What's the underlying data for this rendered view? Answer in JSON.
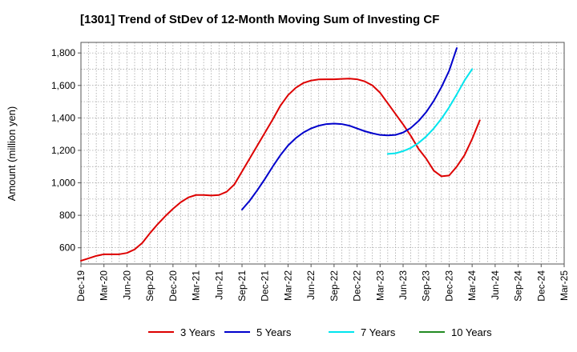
{
  "chart_data": {
    "type": "line",
    "title": "[1301]  Trend of StDev of 12-Month Moving Sum of Investing CF",
    "xlabel": "",
    "ylabel": "Amount (million yen)",
    "x_tick_labels": [
      "Dec-19",
      "Mar-20",
      "Jun-20",
      "Sep-20",
      "Dec-20",
      "Mar-21",
      "Jun-21",
      "Sep-21",
      "Dec-21",
      "Mar-22",
      "Jun-22",
      "Sep-22",
      "Dec-22",
      "Mar-23",
      "Jun-23",
      "Sep-23",
      "Dec-23",
      "Mar-24",
      "Jun-24",
      "Sep-24",
      "Dec-24",
      "Mar-25"
    ],
    "y_ticks": [
      600,
      800,
      1000,
      1200,
      1400,
      1600,
      1800
    ],
    "y_tick_labels": [
      "600",
      "800",
      "1,000",
      "1,200",
      "1,400",
      "1,600",
      "1,800"
    ],
    "ylim": [
      500,
      1865
    ],
    "grid": true,
    "legend_position": "bottom",
    "series": [
      {
        "name": "3 Years",
        "color": "#dd0000",
        "start_index": 0,
        "values": [
          520,
          535,
          550,
          560,
          560,
          560,
          568,
          590,
          630,
          690,
          745,
          795,
          840,
          880,
          910,
          925,
          925,
          922,
          925,
          945,
          990,
          1070,
          1150,
          1230,
          1310,
          1390,
          1475,
          1540,
          1585,
          1615,
          1630,
          1637,
          1638,
          1638,
          1640,
          1642,
          1638,
          1625,
          1600,
          1555,
          1490,
          1425,
          1360,
          1290,
          1210,
          1150,
          1075,
          1040,
          1045,
          1100,
          1170,
          1270,
          1385
        ]
      },
      {
        "name": "5 Years",
        "color": "#0000cc",
        "start_index": 21,
        "values": [
          835,
          890,
          955,
          1025,
          1100,
          1170,
          1230,
          1275,
          1310,
          1335,
          1352,
          1362,
          1365,
          1362,
          1352,
          1335,
          1318,
          1305,
          1295,
          1292,
          1295,
          1310,
          1338,
          1380,
          1435,
          1505,
          1590,
          1690,
          1830
        ]
      },
      {
        "name": "7 Years",
        "color": "#00e5ee",
        "start_index": 40,
        "values": [
          1178,
          1182,
          1195,
          1215,
          1245,
          1285,
          1335,
          1395,
          1465,
          1545,
          1630,
          1700
        ]
      },
      {
        "name": "10 Years",
        "color": "#228b22",
        "start_index": 0,
        "values": []
      }
    ]
  }
}
